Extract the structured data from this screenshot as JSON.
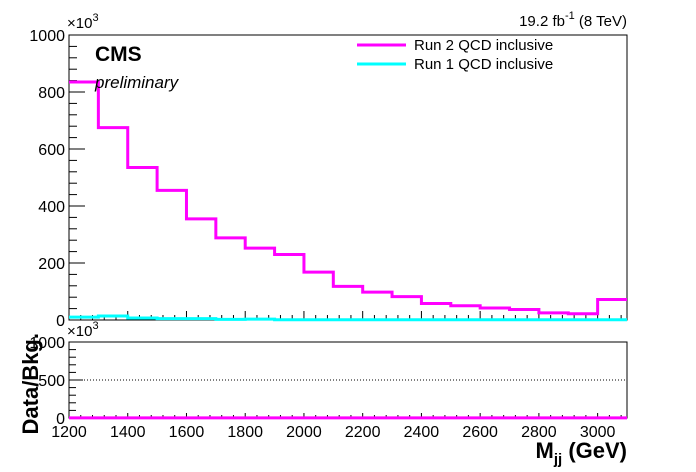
{
  "chart_data": [
    {
      "type": "step",
      "panel": "main",
      "lumi_label": "19.2 fb",
      "lumi_exp": "-1",
      "lumi_energy": " (8 TeV)",
      "experiment": "CMS",
      "status": "preliminary",
      "y_multiplier_base": "×10",
      "y_multiplier_exp": "3",
      "xlim": [
        1200,
        3100
      ],
      "ylim": [
        0,
        1000
      ],
      "x_ticks": [
        1200,
        1400,
        1600,
        1800,
        2000,
        2200,
        2400,
        2600,
        2800,
        3000
      ],
      "y_ticks": [
        0,
        200,
        400,
        600,
        800,
        1000
      ],
      "bin_edges": [
        1200,
        1300,
        1400,
        1500,
        1600,
        1700,
        1800,
        1900,
        2000,
        2100,
        2200,
        2300,
        2400,
        2500,
        2600,
        2700,
        2800,
        2900,
        3000,
        3100
      ],
      "series": [
        {
          "name": "Run 2 QCD inclusive",
          "color": "#ff00ff",
          "values": [
            835,
            675,
            535,
            455,
            355,
            288,
            252,
            230,
            168,
            118,
            98,
            82,
            58,
            50,
            42,
            37,
            25,
            22,
            72
          ]
        },
        {
          "name": "Run 1 QCD inclusive",
          "color": "#00ffff",
          "values": [
            10,
            14,
            7,
            5,
            5,
            2,
            3,
            1,
            1,
            1,
            1,
            1,
            1,
            1,
            1,
            1,
            1,
            1,
            1
          ]
        }
      ],
      "legend_position": "top-right"
    },
    {
      "type": "step",
      "panel": "ratio",
      "ylabel": "Data/Bkg.",
      "xlabel_main": "M",
      "xlabel_sub": "jj",
      "xlabel_unit": " (GeV)",
      "y_multiplier_base": "×10",
      "y_multiplier_exp": "3",
      "xlim": [
        1200,
        3100
      ],
      "ylim": [
        0,
        1000
      ],
      "y_ticks": [
        0,
        500,
        1000
      ],
      "reference_lines": [
        500,
        1000
      ],
      "series": [
        {
          "name": "",
          "color": "#ff00ff",
          "values": [
            1,
            1,
            1,
            1,
            1,
            1,
            1,
            1,
            1,
            1,
            1,
            1,
            1,
            1,
            1,
            1,
            1,
            1,
            1
          ]
        }
      ]
    }
  ]
}
